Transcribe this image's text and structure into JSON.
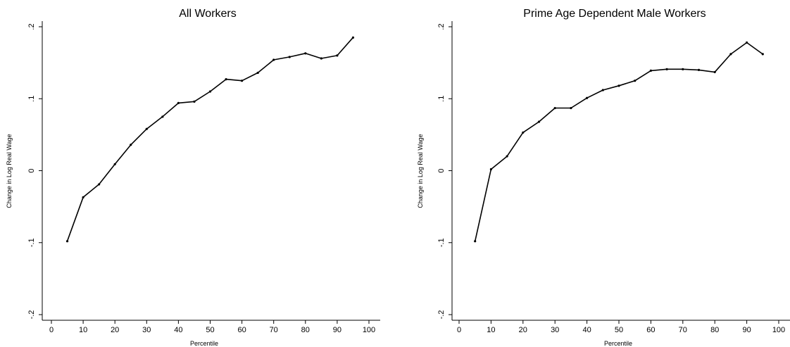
{
  "chart_data": [
    {
      "type": "line",
      "title": "All Workers",
      "xlabel": "Percentile",
      "ylabel": "Change in Log Real Wage",
      "xlim": [
        0,
        100
      ],
      "ylim": [
        -0.2,
        0.2
      ],
      "xticks": [
        0,
        10,
        20,
        30,
        40,
        50,
        60,
        70,
        80,
        90,
        100
      ],
      "xtick_labels": [
        "0",
        "10",
        "20",
        "30",
        "40",
        "50",
        "60",
        "70",
        "80",
        "90",
        "100"
      ],
      "yticks": [
        -0.2,
        -0.1,
        0,
        0.1,
        0.2
      ],
      "ytick_labels": [
        "-.2",
        "-.1",
        "0",
        ".1",
        ".2"
      ],
      "grid": false,
      "series": [
        {
          "color": "#000000",
          "x": [
            5,
            10,
            15,
            20,
            25,
            30,
            35,
            40,
            45,
            50,
            55,
            60,
            65,
            70,
            75,
            80,
            85,
            90,
            95
          ],
          "y": [
            -0.098,
            -0.037,
            -0.019,
            0.009,
            0.036,
            0.058,
            0.075,
            0.094,
            0.096,
            0.11,
            0.127,
            0.125,
            0.136,
            0.154,
            0.158,
            0.163,
            0.156,
            0.16,
            0.185
          ]
        }
      ]
    },
    {
      "type": "line",
      "title": "Prime Age Dependent Male Workers",
      "xlabel": "Percentile",
      "ylabel": "Change in Log Real Wage",
      "xlim": [
        0,
        100
      ],
      "ylim": [
        -0.2,
        0.2
      ],
      "xticks": [
        0,
        10,
        20,
        30,
        40,
        50,
        60,
        70,
        80,
        90,
        100
      ],
      "xtick_labels": [
        "0",
        "10",
        "20",
        "30",
        "40",
        "50",
        "60",
        "70",
        "80",
        "90",
        "100"
      ],
      "yticks": [
        -0.2,
        -0.1,
        0,
        0.1,
        0.2
      ],
      "ytick_labels": [
        "-.2",
        "-.1",
        "0",
        ".1",
        ".2"
      ],
      "grid": false,
      "series": [
        {
          "color": "#000000",
          "x": [
            5,
            10,
            15,
            20,
            25,
            30,
            35,
            40,
            45,
            50,
            55,
            60,
            65,
            70,
            75,
            80,
            85,
            90,
            95
          ],
          "y": [
            -0.098,
            0.002,
            0.02,
            0.053,
            0.068,
            0.087,
            0.087,
            0.101,
            0.112,
            0.118,
            0.125,
            0.139,
            0.141,
            0.141,
            0.14,
            0.137,
            0.162,
            0.178,
            0.162
          ]
        }
      ]
    }
  ]
}
